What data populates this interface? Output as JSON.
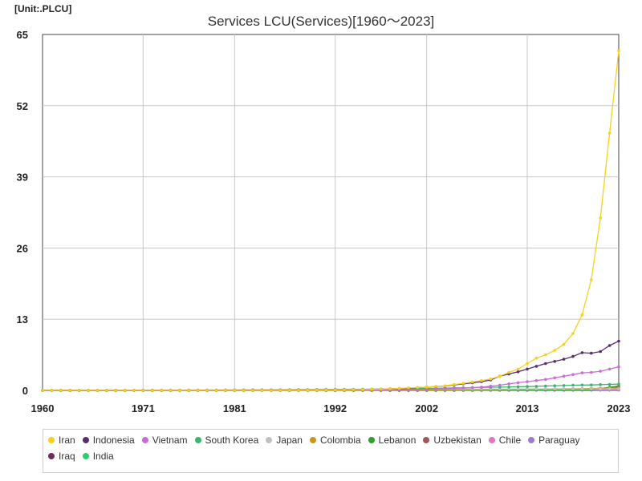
{
  "header": {
    "unit": "[Unit:.PLCU]",
    "title": "Services LCU(Services)[1960～2023]"
  },
  "chart_data": {
    "type": "line",
    "title": "Services LCU(Services)[1960～2023]",
    "unit_label": "[Unit:.PLCU]",
    "xlim": [
      1960,
      2023
    ],
    "ylim": [
      0,
      65
    ],
    "x_ticks": [
      1960,
      1971,
      1981,
      1992,
      2002,
      2013,
      2023
    ],
    "y_ticks": [
      0,
      13,
      26,
      39,
      52,
      65
    ],
    "grid": true,
    "legend_position": "bottom",
    "series": [
      {
        "name": "Iran",
        "color": "#f5d21c",
        "x": [
          1960,
          1965,
          1970,
          1975,
          1980,
          1985,
          1990,
          1992,
          1995,
          1998,
          2000,
          2002,
          2004,
          2006,
          2008,
          2009,
          2010,
          2011,
          2012,
          2013,
          2014,
          2015,
          2016,
          2017,
          2018,
          2019,
          2020,
          2021,
          2022,
          2023
        ],
        "y": [
          0,
          0,
          0,
          0,
          0,
          0.01,
          0.05,
          0.08,
          0.15,
          0.3,
          0.45,
          0.6,
          0.85,
          1.3,
          1.8,
          2.1,
          2.6,
          3.3,
          3.9,
          4.9,
          5.9,
          6.5,
          7.3,
          8.4,
          10.4,
          13.8,
          20.2,
          31.5,
          47,
          62
        ]
      },
      {
        "name": "Indonesia",
        "color": "#5a2e6e",
        "x": [
          1960,
          1970,
          1980,
          1990,
          1995,
          2000,
          2002,
          2004,
          2006,
          2008,
          2009,
          2010,
          2011,
          2012,
          2013,
          2014,
          2015,
          2016,
          2017,
          2018,
          2019,
          2020,
          2021,
          2022,
          2023
        ],
        "y": [
          0,
          0,
          0,
          0.05,
          0.15,
          0.4,
          0.6,
          0.8,
          1.2,
          1.6,
          1.9,
          2.6,
          3.0,
          3.4,
          3.9,
          4.4,
          4.9,
          5.3,
          5.7,
          6.2,
          6.9,
          6.8,
          7.1,
          8.2,
          9.0
        ]
      },
      {
        "name": "Vietnam",
        "color": "#c86dd7",
        "x": [
          1960,
          1990,
          2000,
          2005,
          2008,
          2010,
          2011,
          2012,
          2013,
          2014,
          2015,
          2016,
          2017,
          2018,
          2019,
          2020,
          2021,
          2022,
          2023
        ],
        "y": [
          0,
          0.02,
          0.15,
          0.35,
          0.6,
          0.95,
          1.2,
          1.4,
          1.6,
          1.8,
          2.0,
          2.3,
          2.6,
          2.9,
          3.2,
          3.3,
          3.5,
          3.9,
          4.3
        ]
      },
      {
        "name": "South Korea",
        "color": "#3cb371",
        "x": [
          1960,
          1980,
          1990,
          2000,
          2005,
          2010,
          2013,
          2015,
          2018,
          2020,
          2023
        ],
        "y": [
          0,
          0.02,
          0.1,
          0.3,
          0.45,
          0.6,
          0.7,
          0.8,
          0.95,
          1.0,
          1.15
        ]
      },
      {
        "name": "Japan",
        "color": "#c0c0c0",
        "x": [
          1960,
          1980,
          1990,
          2000,
          2010,
          2020,
          2023
        ],
        "y": [
          0,
          0.1,
          0.2,
          0.25,
          0.25,
          0.27,
          0.28
        ]
      },
      {
        "name": "Colombia",
        "color": "#c8961e",
        "x": [
          1960,
          1990,
          2000,
          2010,
          2020,
          2023
        ],
        "y": [
          0,
          0.01,
          0.08,
          0.2,
          0.35,
          0.45
        ]
      },
      {
        "name": "Lebanon",
        "color": "#2ca02c",
        "x": [
          1960,
          1990,
          2000,
          2010,
          2020,
          2023
        ],
        "y": [
          0,
          0.01,
          0.03,
          0.06,
          0.1,
          0.8
        ]
      },
      {
        "name": "Uzbekistan",
        "color": "#9e5a5a",
        "x": [
          1960,
          1995,
          2005,
          2015,
          2020,
          2023
        ],
        "y": [
          0,
          0,
          0.02,
          0.1,
          0.3,
          0.6
        ]
      },
      {
        "name": "Chile",
        "color": "#e377c2",
        "x": [
          1960,
          1990,
          2000,
          2010,
          2020,
          2023
        ],
        "y": [
          0,
          0.01,
          0.05,
          0.1,
          0.16,
          0.2
        ]
      },
      {
        "name": "Paraguay",
        "color": "#a07ad2",
        "x": [
          1960,
          1990,
          2000,
          2010,
          2020,
          2023
        ],
        "y": [
          0,
          0.01,
          0.03,
          0.06,
          0.1,
          0.12
        ]
      },
      {
        "name": "Iraq",
        "color": "#6b2d5c",
        "x": [
          1960,
          1990,
          2000,
          2010,
          2020,
          2023
        ],
        "y": [
          0,
          0,
          0.01,
          0.04,
          0.07,
          0.09
        ]
      },
      {
        "name": "India",
        "color": "#2ecc71",
        "x": [
          1960,
          1990,
          2000,
          2010,
          2020,
          2023
        ],
        "y": [
          0,
          0.01,
          0.02,
          0.04,
          0.07,
          0.08
        ]
      }
    ]
  }
}
